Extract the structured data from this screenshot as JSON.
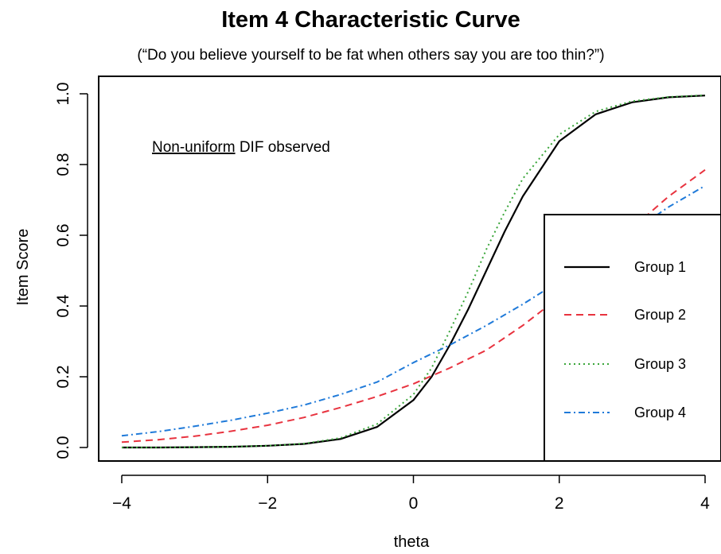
{
  "chart_data": {
    "type": "line",
    "title": "Item 4 Characteristic Curve",
    "subtitle": "(“Do you believe yourself to be fat when others say you are too thin?”)",
    "xlabel": "theta",
    "ylabel": "Item Score",
    "xlim": [
      -4,
      4
    ],
    "ylim": [
      0,
      1
    ],
    "x_ticks": [
      -4,
      -2,
      0,
      2,
      4
    ],
    "x_tick_labels": [
      "−4",
      "−2",
      "0",
      "2",
      "4"
    ],
    "y_ticks": [
      0,
      0.2,
      0.4,
      0.6,
      0.8,
      1
    ],
    "y_tick_labels": [
      "0.0",
      "0.2",
      "0.4",
      "0.6",
      "0.8",
      "1.0"
    ],
    "annotation": {
      "underlined": "Non-uniform",
      "rest": " DIF observed"
    },
    "legend_position": "bottom-right",
    "grid": false,
    "series": [
      {
        "name": "Group 1",
        "color": "#000000",
        "dash": "solid",
        "x": [
          -4,
          -3.5,
          -3,
          -2.5,
          -2,
          -1.5,
          -1,
          -0.5,
          0,
          0.25,
          0.5,
          0.75,
          1,
          1.25,
          1.5,
          2,
          2.5,
          3,
          3.5,
          4
        ],
        "y": [
          0.0,
          0.0,
          0.001,
          0.002,
          0.005,
          0.01,
          0.024,
          0.058,
          0.134,
          0.2,
          0.29,
          0.39,
          0.5,
          0.61,
          0.71,
          0.866,
          0.942,
          0.976,
          0.99,
          0.995
        ]
      },
      {
        "name": "Group 2",
        "color": "#e8333f",
        "dash": "dashed",
        "x": [
          -4,
          -3.5,
          -3,
          -2.5,
          -2,
          -1.5,
          -1,
          -0.5,
          0,
          0.5,
          1,
          1.5,
          2,
          2.5,
          3,
          3.5,
          4
        ],
        "y": [
          0.015,
          0.022,
          0.032,
          0.046,
          0.063,
          0.085,
          0.113,
          0.144,
          0.18,
          0.225,
          0.275,
          0.345,
          0.425,
          0.52,
          0.62,
          0.71,
          0.785
        ]
      },
      {
        "name": "Group 3",
        "color": "#3aa63a",
        "dash": "dotted",
        "x": [
          -4,
          -3.5,
          -3,
          -2.5,
          -2,
          -1.5,
          -1,
          -0.5,
          0,
          0.25,
          0.5,
          0.75,
          1,
          1.25,
          1.5,
          2,
          2.5,
          3,
          3.5,
          4
        ],
        "y": [
          0.0,
          0.0,
          0.001,
          0.002,
          0.005,
          0.011,
          0.027,
          0.066,
          0.15,
          0.225,
          0.33,
          0.44,
          0.56,
          0.665,
          0.76,
          0.885,
          0.95,
          0.979,
          0.991,
          0.996
        ]
      },
      {
        "name": "Group 4",
        "color": "#1f7ad9",
        "dash": "dashdot",
        "x": [
          -4,
          -3.5,
          -3,
          -2.5,
          -2,
          -1.5,
          -1,
          -0.5,
          0,
          0.5,
          1,
          1.5,
          2,
          2.5,
          3,
          3.5,
          4
        ],
        "y": [
          0.033,
          0.045,
          0.06,
          0.077,
          0.097,
          0.12,
          0.15,
          0.185,
          0.24,
          0.29,
          0.345,
          0.405,
          0.47,
          0.535,
          0.61,
          0.68,
          0.74
        ]
      }
    ]
  }
}
